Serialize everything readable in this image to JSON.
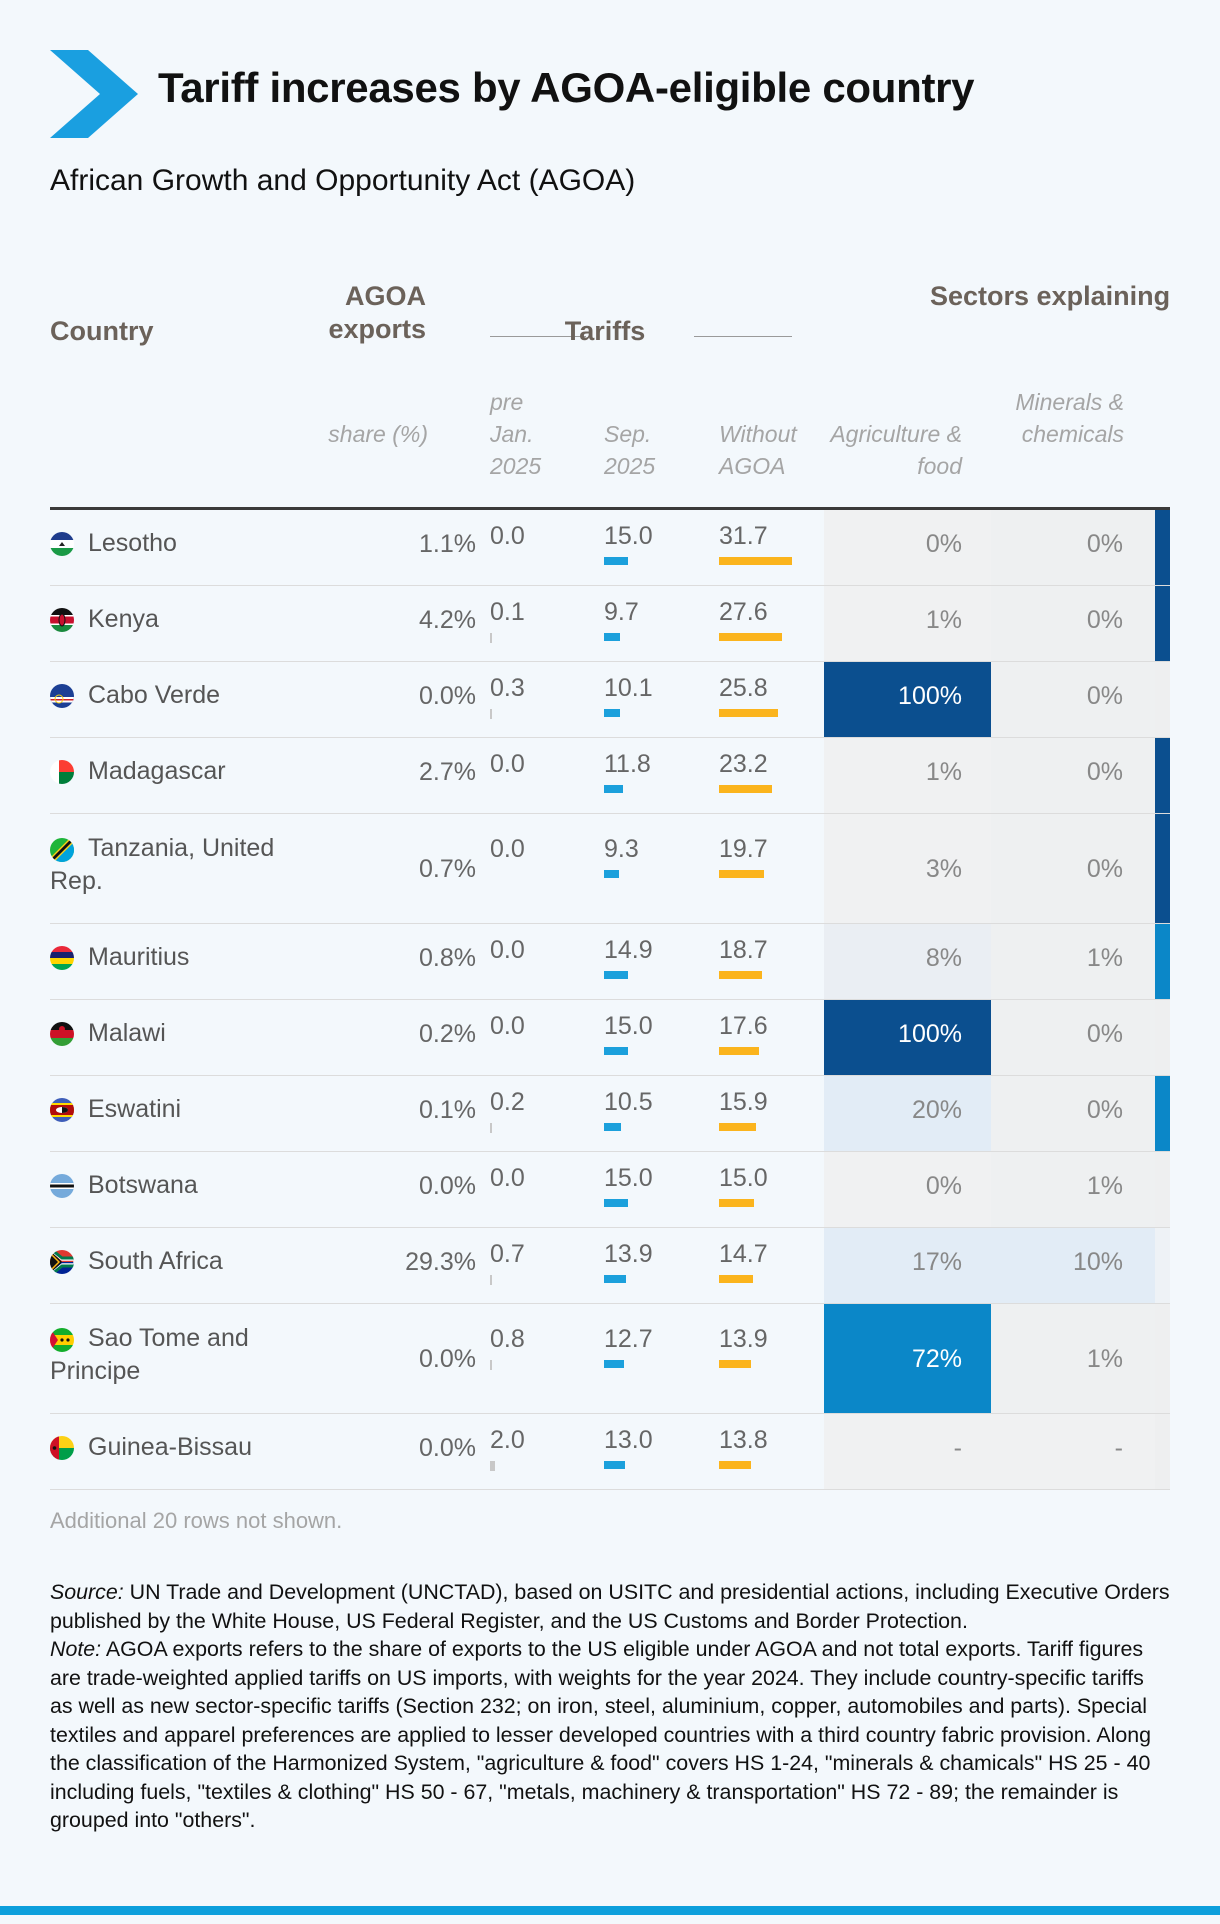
{
  "title": "Tariff increases by AGOA-eligible country",
  "subtitle": "African Growth and Opportunity Act (AGOA)",
  "headers": {
    "country": "Country",
    "agoa_exports": "AGOA exports",
    "tariffs": "Tariffs",
    "sectors": "Sectors explaining t",
    "share": "share (%)",
    "pre_jan": "pre Jan. 2025",
    "sep": "Sep. 2025",
    "without": "Without AGOA",
    "agri": "Agriculture & food",
    "minerals": "Minerals & chemicals"
  },
  "chart_data": {
    "type": "table",
    "columns": [
      "Country",
      "AGOA exports share (%)",
      "pre Jan. 2025",
      "Sep. 2025",
      "Without AGOA",
      "Agriculture & food",
      "Minerals & chemicals"
    ],
    "rows": [
      {
        "country": "Lesotho",
        "share": "1.1%",
        "pre": 0.0,
        "sep": 15.0,
        "without": 31.7,
        "agri": "0%",
        "minerals": "0%",
        "pre_label": "0.0",
        "sep_label": "15.0",
        "without_label": "31.7",
        "agri_level": 0,
        "min_level": 0,
        "strip": "dark"
      },
      {
        "country": "Kenya",
        "share": "4.2%",
        "pre": 0.1,
        "sep": 9.7,
        "without": 27.6,
        "agri": "1%",
        "minerals": "0%",
        "pre_label": "0.1",
        "sep_label": "9.7",
        "without_label": "27.6",
        "agri_level": 0.01,
        "min_level": 0,
        "strip": "dark"
      },
      {
        "country": "Cabo Verde",
        "share": "0.0%",
        "pre": 0.3,
        "sep": 10.1,
        "without": 25.8,
        "agri": "100%",
        "minerals": "0%",
        "pre_label": "0.3",
        "sep_label": "10.1",
        "without_label": "25.8",
        "agri_level": 1.0,
        "min_level": 0,
        "strip": "none"
      },
      {
        "country": "Madagascar",
        "share": "2.7%",
        "pre": 0.0,
        "sep": 11.8,
        "without": 23.2,
        "agri": "1%",
        "minerals": "0%",
        "pre_label": "0.0",
        "sep_label": "11.8",
        "without_label": "23.2",
        "agri_level": 0.01,
        "min_level": 0,
        "strip": "dark"
      },
      {
        "country": "Tanzania, United Rep.",
        "share": "0.7%",
        "pre": 0.0,
        "sep": 9.3,
        "without": 19.7,
        "agri": "3%",
        "minerals": "0%",
        "pre_label": "0.0",
        "sep_label": "9.3",
        "without_label": "19.7",
        "agri_level": 0.03,
        "min_level": 0,
        "strip": "dark"
      },
      {
        "country": "Mauritius",
        "share": "0.8%",
        "pre": 0.0,
        "sep": 14.9,
        "without": 18.7,
        "agri": "8%",
        "minerals": "1%",
        "pre_label": "0.0",
        "sep_label": "14.9",
        "without_label": "18.7",
        "agri_level": 0.08,
        "min_level": 0.01,
        "strip": "medium"
      },
      {
        "country": "Malawi",
        "share": "0.2%",
        "pre": 0.0,
        "sep": 15.0,
        "without": 17.6,
        "agri": "100%",
        "minerals": "0%",
        "pre_label": "0.0",
        "sep_label": "15.0",
        "without_label": "17.6",
        "agri_level": 1.0,
        "min_level": 0,
        "strip": "none"
      },
      {
        "country": "Eswatini",
        "share": "0.1%",
        "pre": 0.2,
        "sep": 10.5,
        "without": 15.9,
        "agri": "20%",
        "minerals": "0%",
        "pre_label": "0.2",
        "sep_label": "10.5",
        "without_label": "15.9",
        "agri_level": 0.2,
        "min_level": 0,
        "strip": "medium"
      },
      {
        "country": "Botswana",
        "share": "0.0%",
        "pre": 0.0,
        "sep": 15.0,
        "without": 15.0,
        "agri": "0%",
        "minerals": "1%",
        "pre_label": "0.0",
        "sep_label": "15.0",
        "without_label": "15.0",
        "agri_level": 0,
        "min_level": 0.01,
        "strip": "none"
      },
      {
        "country": "South Africa",
        "share": "29.3%",
        "pre": 0.7,
        "sep": 13.9,
        "without": 14.7,
        "agri": "17%",
        "minerals": "10%",
        "pre_label": "0.7",
        "sep_label": "13.9",
        "without_label": "14.7",
        "agri_level": 0.17,
        "min_level": 0.1,
        "strip": "faint"
      },
      {
        "country": "Sao Tome and Principe",
        "share": "0.0%",
        "pre": 0.8,
        "sep": 12.7,
        "without": 13.9,
        "agri": "72%",
        "minerals": "1%",
        "pre_label": "0.8",
        "sep_label": "12.7",
        "without_label": "13.9",
        "agri_level": 0.72,
        "min_level": 0.01,
        "strip": "none"
      },
      {
        "country": "Guinea-Bissau",
        "share": "0.0%",
        "pre": 2.0,
        "sep": 13.0,
        "without": 13.8,
        "agri": "-",
        "minerals": "-",
        "pre_label": "2.0",
        "sep_label": "13.0",
        "without_label": "13.8",
        "agri_level": null,
        "min_level": null,
        "strip": "none"
      }
    ],
    "bar_colors": {
      "sep": "#1ba0dc",
      "without": "#fbb41d",
      "pre": "#c8c8c8"
    },
    "heat_colors": {
      "dark": "#0b4f8f",
      "medium": "#0b87c8",
      "light": "#e2ecf6",
      "neutral": "#f0f1f2"
    }
  },
  "footer": {
    "not_shown": "Additional 20 rows not shown.",
    "source_label": "Source:",
    "source_text": " UN Trade and Development (UNCTAD), based on USITC and presidential actions, including Executive Orders published by the White House, US Federal Register, and the US Customs and Border Protection.",
    "note_label": "Note:",
    "note_text": " AGOA exports refers to the share of exports to the US eligible under AGOA and not total exports. Tariff figures are trade-weighted applied tariffs on US imports, with weights for the year 2024. They include country-specific tariffs as well as new sector-specific tariffs (Section 232; on iron, steel, aluminium, copper, automobiles and parts). Special textiles and apparel preferences are applied to lesser developed countries with a third country fabric provision. Along the classification of the Harmonized System, \"agriculture & food\" covers HS 1-24, \"minerals & chamicals\" HS 25 - 40 including fuels, \"textiles & clothing\" HS 50 - 67, \"metals, machinery & transportation\" HS 72 - 89; the remainder is grouped into \"others\"."
  },
  "accent_color": "#1a9fe0"
}
